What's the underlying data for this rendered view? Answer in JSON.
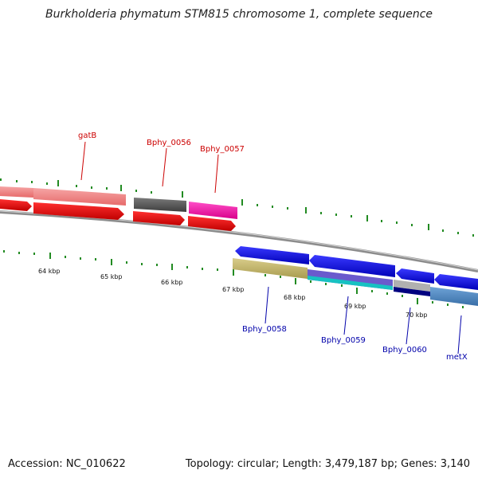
{
  "title": "Burkholderia phymatum STM815 chromosome 1, complete sequence",
  "footer": {
    "accession": "Accession: NC_010622",
    "topology": "Topology: circular; Length: 3,479,187 bp; Genes: 3,140"
  },
  "colors": {
    "forward_label": "#cc0000",
    "reverse_label": "#0000aa",
    "ticks": "#228b22",
    "backbone": "#8c8c8c"
  },
  "scale_labels": [
    "64 kbp",
    "65 kbp",
    "66 kbp",
    "67 kbp",
    "68 kbp",
    "69 kbp",
    "70 kbp"
  ],
  "gene_labels": {
    "gatB": "gatB",
    "bphy_0056": "Bphy_0056",
    "bphy_0057": "Bphy_0057",
    "bphy_0058": "Bphy_0058",
    "bphy_0059": "Bphy_0059",
    "bphy_0060": "Bphy_0060",
    "metX": "metX"
  }
}
